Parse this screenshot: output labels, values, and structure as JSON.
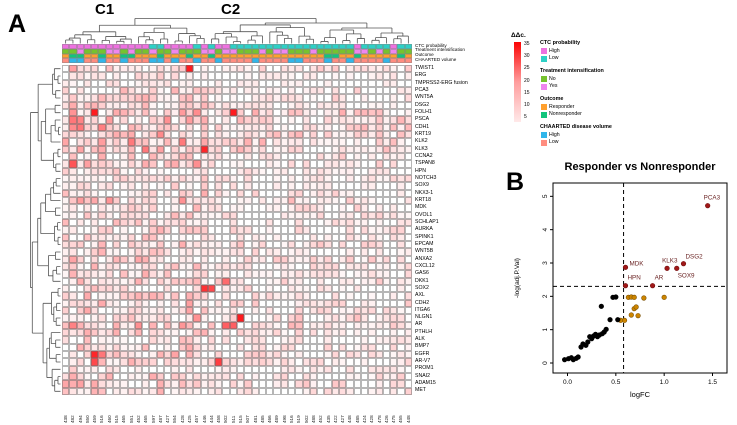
{
  "figure": {
    "panel_a_label": "A",
    "panel_b_label": "B",
    "cluster_c1": "C1",
    "cluster_c2": "C2"
  },
  "heatmap": {
    "scale_title": "ΔΔc.",
    "scale_ticks": [
      "35",
      "30",
      "25",
      "20",
      "15",
      "10",
      "5"
    ],
    "annotation_labels": [
      "CTC probability",
      "Treatment intensification",
      "Outcome",
      "CHAARTED volume"
    ],
    "annotation_rows": [
      {
        "label": "CTC probability",
        "colors": {
          "H": "#ee72e0",
          "L": "#2ed0c6"
        },
        "values": [
          "H",
          "H",
          "H",
          "H",
          "H",
          "H",
          "H",
          "H",
          "H",
          "H",
          "H",
          "H",
          "L",
          "L",
          "H",
          "H",
          "H",
          "H",
          "L",
          "H",
          "L",
          "H",
          "H",
          "L",
          "L",
          "L",
          "L",
          "L",
          "L",
          "L",
          "L",
          "L",
          "L",
          "L",
          "L",
          "L",
          "L",
          "L",
          "L",
          "L",
          "H",
          "L",
          "L",
          "L",
          "L",
          "H",
          "L",
          "L"
        ]
      },
      {
        "label": "Treatment intensification",
        "colors": {
          "N": "#76c32e",
          "Y": "#ef86ef"
        },
        "values": [
          "N",
          "N",
          "Y",
          "N",
          "N",
          "N",
          "Y",
          "Y",
          "N",
          "Y",
          "N",
          "N",
          "Y",
          "N",
          "N",
          "Y",
          "N",
          "N",
          "N",
          "Y",
          "Y",
          "N",
          "Y",
          "Y",
          "N",
          "N",
          "N",
          "Y",
          "N",
          "Y",
          "Y",
          "N",
          "N",
          "N",
          "Y",
          "N",
          "N",
          "N",
          "N",
          "N",
          "Y",
          "Y",
          "N",
          "Y",
          "N",
          "Y",
          "N",
          "N"
        ]
      },
      {
        "label": "Outcome",
        "colors": {
          "R": "#ffa02e",
          "N": "#12c57c"
        },
        "values": [
          "R",
          "N",
          "N",
          "R",
          "R",
          "N",
          "R",
          "R",
          "N",
          "N",
          "R",
          "R",
          "R",
          "N",
          "R",
          "R",
          "R",
          "N",
          "R",
          "R",
          "N",
          "R",
          "R",
          "R",
          "R",
          "R",
          "R",
          "R",
          "R",
          "R",
          "R",
          "R",
          "R",
          "R",
          "R",
          "R",
          "N",
          "N",
          "R",
          "R",
          "N",
          "R",
          "R",
          "R",
          "R",
          "R",
          "N",
          "R"
        ]
      },
      {
        "label": "CHAARTED volume",
        "colors": {
          "H": "#31b6ea",
          "L": "#ff8d80"
        },
        "values": [
          "L",
          "H",
          "H",
          "L",
          "L",
          "H",
          "L",
          "L",
          "H",
          "L",
          "L",
          "L",
          "H",
          "H",
          "L",
          "H",
          "L",
          "L",
          "H",
          "L",
          "L",
          "H",
          "L",
          "L",
          "L",
          "L",
          "H",
          "L",
          "L",
          "L",
          "L",
          "H",
          "H",
          "L",
          "L",
          "L",
          "H",
          "L",
          "L",
          "H",
          "L",
          "L",
          "L",
          "L",
          "H",
          "L",
          "L",
          "L"
        ]
      }
    ],
    "genes": [
      "TWIST1",
      "ERG",
      "TMPRSS2-ERG fusion",
      "PCA3",
      "WNT5A",
      "DSG2",
      "FOLH1",
      "PSCA",
      "CDH1",
      "KRT19",
      "KLK2",
      "KLK3",
      "CCNA2",
      "TSPAN8",
      "HPN",
      "NOTCH3",
      "SOX9",
      "NKX3-1",
      "KRT18",
      "MDK",
      "OVOL1",
      "SCHLAP1",
      "AURKA",
      "SPINK1",
      "EPCAM",
      "WNT5B",
      "ANXA2",
      "CXCL12",
      "GAS6",
      "DKK1",
      "SOX2",
      "AXL",
      "CDH2",
      "ITGA6",
      "NLGN1",
      "AR",
      "PTHLH",
      "ALK",
      "BMP7",
      "EGFR",
      "AR-V7",
      "PROM1",
      "SNAI2",
      "ADAM15",
      "MET"
    ],
    "gene_base": [
      0.35,
      0.2,
      0.15,
      0.3,
      0.35,
      0.3,
      0.55,
      0.45,
      0.5,
      0.45,
      0.5,
      0.5,
      0.4,
      0.4,
      0.3,
      0.3,
      0.25,
      0.3,
      0.45,
      0.35,
      0.3,
      0.25,
      0.3,
      0.25,
      0.4,
      0.3,
      0.4,
      0.3,
      0.3,
      0.35,
      0.3,
      0.3,
      0.35,
      0.35,
      0.4,
      0.45,
      0.3,
      0.25,
      0.3,
      0.35,
      0.3,
      0.25,
      0.3,
      0.4,
      0.3
    ],
    "samples": [
      "438",
      "482",
      "494",
      "550",
      "459",
      "516",
      "460",
      "515",
      "465",
      "551",
      "452",
      "465",
      "597",
      "487",
      "427",
      "554",
      "428",
      "425",
      "457",
      "446",
      "444",
      "458",
      "502",
      "511",
      "515",
      "507",
      "481",
      "485",
      "466",
      "489",
      "498",
      "516",
      "519",
      "502",
      "488",
      "452",
      "435",
      "422",
      "427",
      "448",
      "485",
      "424",
      "428",
      "478",
      "426",
      "475",
      "455",
      "448"
    ],
    "hot_cells": [
      [
        0,
        17,
        1.0
      ],
      [
        6,
        4,
        1.0
      ],
      [
        6,
        23,
        1.0
      ],
      [
        7,
        1,
        0.6
      ],
      [
        8,
        2,
        0.6
      ],
      [
        11,
        19,
        0.95
      ],
      [
        13,
        1,
        0.75
      ],
      [
        29,
        22,
        0.65
      ],
      [
        30,
        19,
        0.9
      ],
      [
        30,
        20,
        0.8
      ],
      [
        34,
        24,
        1.0
      ],
      [
        35,
        22,
        0.7
      ],
      [
        35,
        23,
        0.7
      ],
      [
        39,
        4,
        0.95
      ],
      [
        39,
        5,
        0.6
      ],
      [
        40,
        4,
        0.8
      ],
      [
        40,
        21,
        0.85
      ]
    ],
    "c1_columns": 20,
    "c1_bias": 1.25,
    "c2_bias": 0.72,
    "seed": 7
  },
  "legend": {
    "sections": [
      {
        "title": "CTC probability",
        "items": [
          {
            "label": "High",
            "color": "#ee72e0"
          },
          {
            "label": "Low",
            "color": "#2ed0c6"
          }
        ]
      },
      {
        "title": "Treatment intensification",
        "items": [
          {
            "label": "No",
            "color": "#76c32e"
          },
          {
            "label": "Yes",
            "color": "#ef86ef"
          }
        ]
      },
      {
        "title": "Outcome",
        "items": [
          {
            "label": "Responder",
            "color": "#ffa02e"
          },
          {
            "label": "Nonresponder",
            "color": "#12c57c"
          }
        ]
      },
      {
        "title": "CHAARTED disease volume",
        "items": [
          {
            "label": "High",
            "color": "#31b6ea"
          },
          {
            "label": "Low",
            "color": "#ff8d80"
          }
        ]
      }
    ]
  },
  "chart_data": {
    "type": "scatter",
    "title": "Responder vs Nonresponder",
    "xlabel": "logFC",
    "ylabel": "-log(adj.P.Val)",
    "xlim": [
      -0.15,
      1.65
    ],
    "ylim": [
      -0.3,
      5.4
    ],
    "xticks": [
      "0.0",
      "0.5",
      "1.0",
      "1.5"
    ],
    "xtick_values": [
      0.0,
      0.5,
      1.0,
      1.5
    ],
    "yticks": [
      "0",
      "1",
      "2",
      "3",
      "4",
      "5"
    ],
    "ytick_values": [
      0,
      1,
      2,
      3,
      4,
      5
    ],
    "threshold_x": 0.58,
    "threshold_y": 2.3,
    "series": [
      {
        "name": "significant",
        "color": "#a01818",
        "points": [
          {
            "x": 1.45,
            "y": 4.72,
            "label": "PCA3",
            "dx": -4,
            "dy": -6
          },
          {
            "x": 0.6,
            "y": 2.87,
            "label": "MDK",
            "dx": 4,
            "dy": -2
          },
          {
            "x": 1.03,
            "y": 2.84,
            "label": "KLK3",
            "dx": -5,
            "dy": -6
          },
          {
            "x": 1.2,
            "y": 2.98,
            "label": "DSG2",
            "dx": 2,
            "dy": -5
          },
          {
            "x": 1.13,
            "y": 2.84,
            "label": "SOX9",
            "dx": 1,
            "dy": 9
          },
          {
            "x": 0.6,
            "y": 2.32,
            "label": "HPN",
            "dx": 2,
            "dy": -6
          },
          {
            "x": 0.88,
            "y": 2.32,
            "label": "AR",
            "dx": 2,
            "dy": -6
          }
        ]
      },
      {
        "name": "intermediate",
        "color": "#cd8500",
        "points": [
          {
            "x": 0.55,
            "y": 1.28
          },
          {
            "x": 0.59,
            "y": 1.28
          },
          {
            "x": 0.63,
            "y": 1.97
          },
          {
            "x": 0.66,
            "y": 1.98
          },
          {
            "x": 0.69,
            "y": 1.97
          },
          {
            "x": 0.66,
            "y": 1.44
          },
          {
            "x": 0.69,
            "y": 1.63
          },
          {
            "x": 0.71,
            "y": 1.68
          },
          {
            "x": 0.73,
            "y": 1.42
          },
          {
            "x": 0.79,
            "y": 1.95
          },
          {
            "x": 1.0,
            "y": 1.97
          }
        ]
      },
      {
        "name": "nonsignificant",
        "color": "#000000",
        "points": [
          {
            "x": -0.03,
            "y": 0.1
          },
          {
            "x": 0.01,
            "y": 0.13
          },
          {
            "x": 0.04,
            "y": 0.16
          },
          {
            "x": 0.06,
            "y": 0.1
          },
          {
            "x": 0.09,
            "y": 0.14
          },
          {
            "x": 0.11,
            "y": 0.18
          },
          {
            "x": 0.14,
            "y": 0.48
          },
          {
            "x": 0.16,
            "y": 0.57
          },
          {
            "x": 0.19,
            "y": 0.53
          },
          {
            "x": 0.21,
            "y": 0.63
          },
          {
            "x": 0.23,
            "y": 0.79
          },
          {
            "x": 0.25,
            "y": 0.73
          },
          {
            "x": 0.27,
            "y": 0.81
          },
          {
            "x": 0.29,
            "y": 0.86
          },
          {
            "x": 0.31,
            "y": 0.79
          },
          {
            "x": 0.33,
            "y": 0.84
          },
          {
            "x": 0.35,
            "y": 1.7
          },
          {
            "x": 0.36,
            "y": 0.88
          },
          {
            "x": 0.38,
            "y": 0.93
          },
          {
            "x": 0.4,
            "y": 1.01
          },
          {
            "x": 0.44,
            "y": 1.3
          },
          {
            "x": 0.47,
            "y": 1.97
          },
          {
            "x": 0.5,
            "y": 1.98
          },
          {
            "x": 0.52,
            "y": 1.3
          }
        ]
      }
    ]
  }
}
